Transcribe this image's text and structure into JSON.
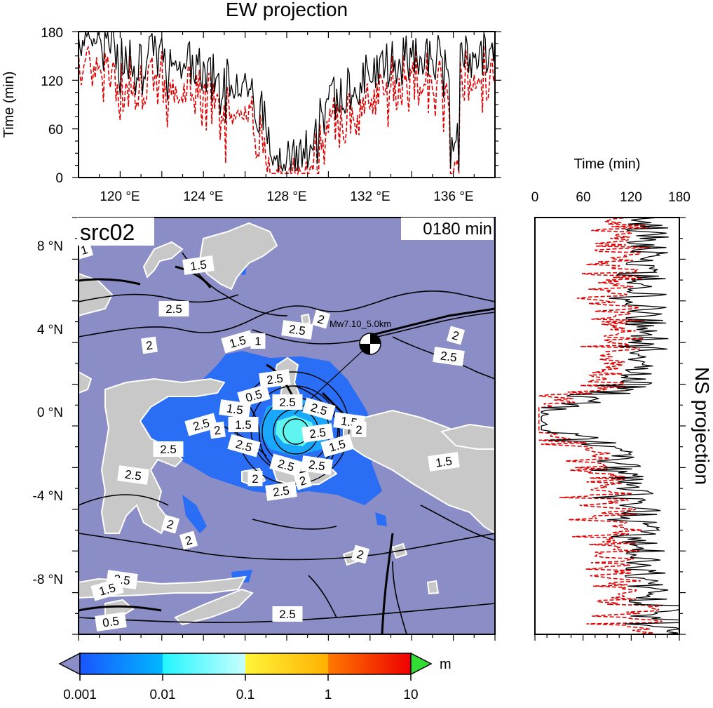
{
  "top_panel": {
    "title": "EW projection",
    "ylabel": "Time (min)",
    "yticks": [
      "0",
      "60",
      "120",
      "180"
    ],
    "xticks": [
      "120 °E",
      "124 °E",
      "128 °E",
      "132 °E",
      "136 °E"
    ],
    "x_range": [
      118,
      138
    ],
    "y_range": [
      0,
      180
    ]
  },
  "side_panel": {
    "title": "NS projection",
    "xlabel": "Time (min)",
    "xticks": [
      "0",
      "60",
      "120",
      "180"
    ],
    "x_range": [
      0,
      180
    ],
    "y_range": [
      -11,
      9
    ]
  },
  "map": {
    "run_label": "src02",
    "time_label": "0180 min",
    "event_label": "Mw7.10_5.0km",
    "yticks": [
      "8 °N",
      "4 °N",
      "0 °N",
      "-4 °N",
      "-8 °N"
    ],
    "lon_range": [
      118,
      138
    ],
    "lat_range": [
      -11,
      9
    ],
    "contour_labels": [
      "1",
      "1.5",
      "2.5",
      "2.5",
      "2",
      "1.5",
      "2",
      "1",
      "2.5",
      "2",
      "0.5",
      "2.5",
      "2.5",
      "1.5",
      "2.5",
      "2.5",
      "2",
      "1.5",
      "1.5",
      "2.5",
      "1.5",
      "2.5",
      "2.5",
      "2.5",
      "2.5",
      "2",
      "2.5",
      "2",
      "2.5",
      "2",
      "2",
      "1.5",
      "2.5",
      "2.5",
      "2",
      "1.5",
      "0.5",
      "2"
    ],
    "background_color": "#8b8dc6",
    "land_color": "#c8c8c8"
  },
  "colorbar": {
    "unit": "m",
    "ticks": [
      "0.001",
      "0.01",
      "0.1",
      "1",
      "10"
    ],
    "colors": [
      "#1f5fff",
      "#00aaff",
      "#33ffee",
      "#aaffff",
      "#ffff33",
      "#ffaa00",
      "#ff5500",
      "#ee0000",
      "#33dd33",
      "#8b8dc6"
    ]
  }
}
